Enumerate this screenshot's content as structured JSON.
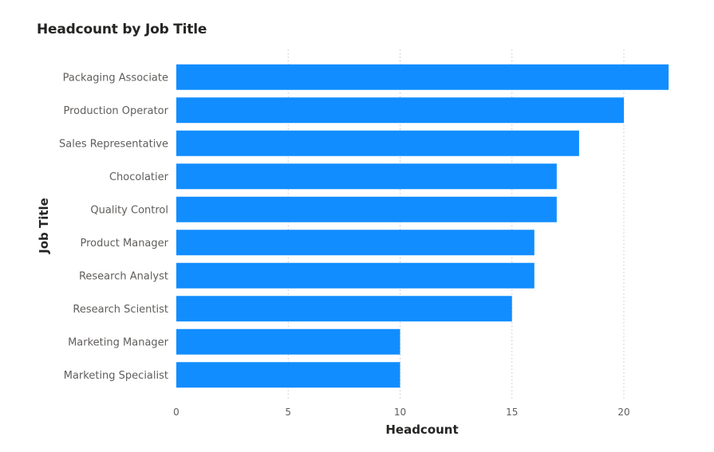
{
  "chart_data": {
    "type": "bar",
    "orientation": "horizontal",
    "title": "Headcount by Job Title",
    "xlabel": "Headcount",
    "ylabel": "Job Title",
    "categories": [
      "Packaging Associate",
      "Production Operator",
      "Sales Representative",
      "Chocolatier",
      "Quality Control",
      "Product Manager",
      "Research Analyst",
      "Research Scientist",
      "Marketing Manager",
      "Marketing Specialist"
    ],
    "values": [
      22,
      20,
      18,
      17,
      17,
      16,
      16,
      15,
      10,
      10
    ],
    "xlim": [
      0,
      22
    ],
    "xticks": [
      0,
      5,
      10,
      15,
      20
    ],
    "grid": true,
    "colors": {
      "bar": "#118DFF",
      "grid": "#C8C6C4",
      "tick_text": "#605E5C",
      "label_text": "#252423",
      "title_text": "#252423"
    }
  }
}
